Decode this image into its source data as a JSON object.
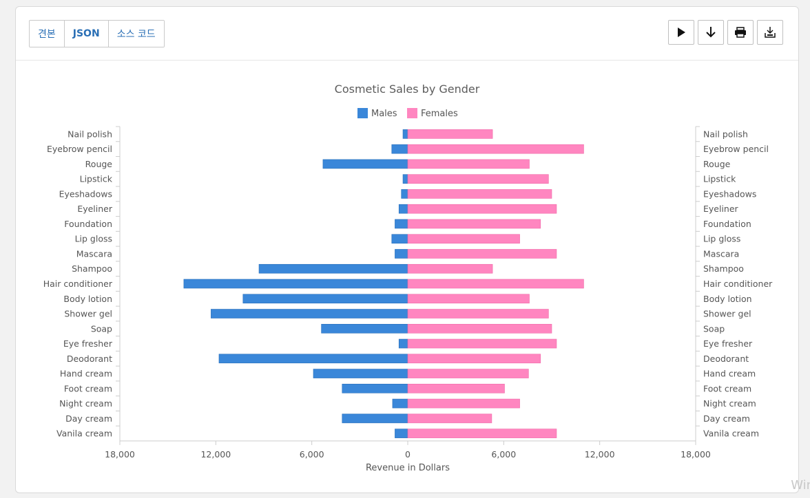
{
  "tabs": [
    {
      "label": "견본"
    },
    {
      "label": "JSON"
    },
    {
      "label": "소스 코드"
    }
  ],
  "actions": [
    {
      "icon": "play-icon"
    },
    {
      "icon": "download-arrow-icon"
    },
    {
      "icon": "print-icon"
    },
    {
      "icon": "export-icon"
    }
  ],
  "watermark": "Win",
  "colors": {
    "males": "#3a87d9",
    "females": "#ff86c0"
  },
  "chart_data": {
    "type": "bar",
    "orientation": "horizontal-diverging",
    "title": "Cosmetic Sales by Gender",
    "xlabel": "Revenue in Dollars",
    "xlim": [
      -18000,
      18000
    ],
    "xticks": [
      {
        "value": -18000,
        "label": "18,000"
      },
      {
        "value": -12000,
        "label": "12,000"
      },
      {
        "value": -6000,
        "label": "6,000"
      },
      {
        "value": 0,
        "label": "0"
      },
      {
        "value": 6000,
        "label": "6,000"
      },
      {
        "value": 12000,
        "label": "12,000"
      },
      {
        "value": 18000,
        "label": "18,000"
      }
    ],
    "legend_position": "top-center",
    "categories": [
      "Nail polish",
      "Eyebrow pencil",
      "Rouge",
      "Lipstick",
      "Eyeshadows",
      "Eyeliner",
      "Foundation",
      "Lip gloss",
      "Mascara",
      "Shampoo",
      "Hair conditioner",
      "Body lotion",
      "Shower gel",
      "Soap",
      "Eye fresher",
      "Deodorant",
      "Hand cream",
      "Foot cream",
      "Night cream",
      "Day cream",
      "Vanila cream"
    ],
    "series": [
      {
        "name": "Males",
        "values": [
          -300,
          -1000,
          -5300,
          -300,
          -400,
          -550,
          -800,
          -1000,
          -800,
          -9300,
          -14000,
          -10300,
          -12300,
          -5400,
          -550,
          -11800,
          -5900,
          -4100,
          -950,
          -4100,
          -800
        ]
      },
      {
        "name": "Females",
        "values": [
          5300,
          11000,
          7600,
          8800,
          9000,
          9300,
          8300,
          7000,
          9300,
          5300,
          11000,
          7600,
          8800,
          9000,
          9300,
          8300,
          7550,
          6050,
          7000,
          5250,
          9300
        ]
      }
    ]
  }
}
